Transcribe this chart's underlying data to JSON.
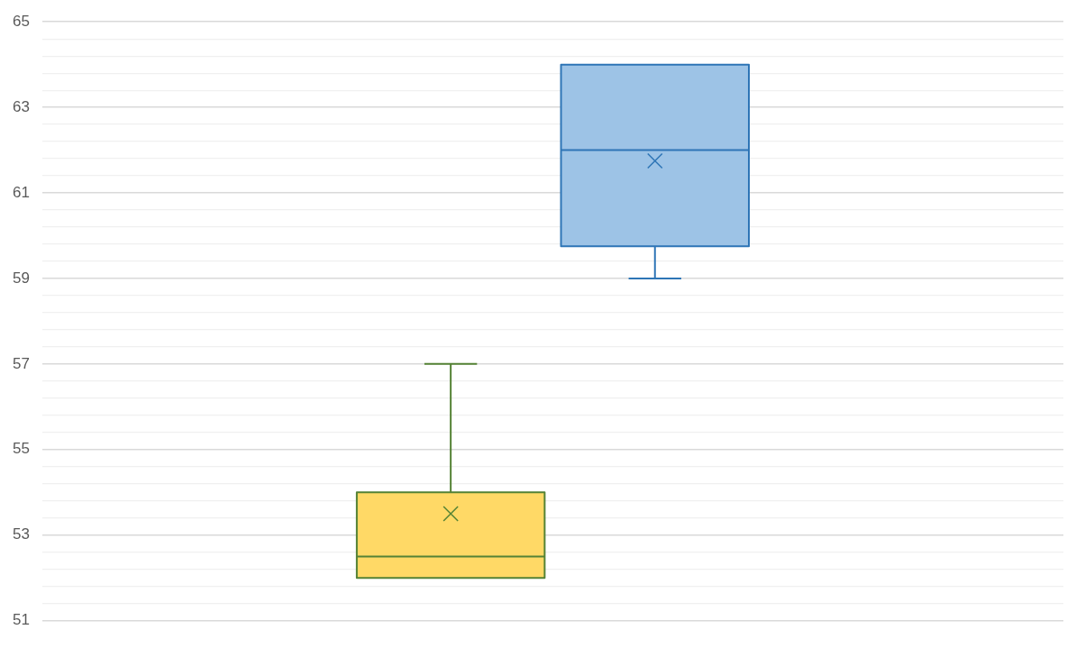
{
  "chart_data": {
    "type": "box",
    "categories": [
      null
    ],
    "series": [
      {
        "color": "#ffd966",
        "boxes": [
          {
            "low": 52,
            "q1": 52,
            "median": 52.5,
            "q3": 54,
            "high": 57,
            "mean": 53.5
          }
        ]
      },
      {
        "color": "#9dc3e6",
        "boxes": [
          {
            "low": 59,
            "q1": 59.75,
            "median": 62,
            "q3": 64,
            "high": 64,
            "mean": 61.75
          }
        ]
      }
    ],
    "ylim": [
      51,
      65
    ],
    "yticks": [
      51,
      {
        "value": 51.4,
        "label": null
      },
      {
        "value": 51.8,
        "label": null
      },
      {
        "value": 52.2,
        "label": null
      },
      {
        "value": 52.6,
        "label": null
      },
      53,
      {
        "value": 53.4,
        "label": null
      },
      {
        "value": 53.8,
        "label": null
      },
      {
        "value": 54.2,
        "label": null
      },
      {
        "value": 54.6,
        "label": null
      },
      55,
      {
        "value": 55.4,
        "label": null
      },
      {
        "value": 55.8,
        "label": null
      },
      {
        "value": 56.2,
        "label": null
      },
      {
        "value": 56.6,
        "label": null
      },
      57,
      {
        "value": 57.4,
        "label": null
      },
      {
        "value": 57.8,
        "label": null
      },
      {
        "value": 58.2,
        "label": null
      },
      {
        "value": 58.6,
        "label": null
      },
      59,
      {
        "value": 59.4,
        "label": null
      },
      {
        "value": 59.8,
        "label": null
      },
      {
        "value": 60.2,
        "label": null
      },
      {
        "value": 60.6,
        "label": null
      },
      61,
      {
        "value": 61.4,
        "label": null
      },
      {
        "value": 61.8,
        "label": null
      },
      {
        "value": 62.2,
        "label": null
      },
      {
        "value": 62.6,
        "label": null
      },
      63,
      {
        "value": 63.4,
        "label": null
      },
      {
        "value": 63.8,
        "label": null
      },
      {
        "value": 64.2,
        "label": null
      },
      {
        "value": 64.6,
        "label": null
      },
      65
    ],
    "grid": "y"
  }
}
